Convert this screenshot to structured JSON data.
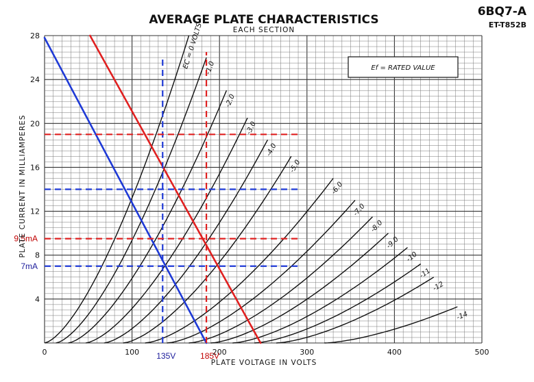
{
  "chart_data": {
    "type": "line",
    "title": "AVERAGE PLATE CHARACTERISTICS",
    "subtitle": "EACH SECTION",
    "tube_type": "6BQ7-A",
    "tube_code": "ET-T852B",
    "xlabel": "PLATE VOLTAGE IN VOLTS",
    "ylabel": "PLATE CURRENT IN MILLIAMPERES",
    "xlim": [
      0,
      500
    ],
    "ylim": [
      0,
      28
    ],
    "x_ticks": [
      "0",
      "100",
      "200",
      "300",
      "400",
      "500"
    ],
    "y_ticks": [
      "4",
      "8",
      "12",
      "16",
      "20",
      "24",
      "28"
    ],
    "grid": true,
    "note": "Ef = RATED VALUE",
    "curves": [
      {
        "label": "EC = 0 VOLTS",
        "v0": 0,
        "v_end": 165,
        "i_end": 28
      },
      {
        "label": "-1.0",
        "v0": 13,
        "v_end": 185,
        "i_end": 26
      },
      {
        "label": "-2.0",
        "v0": 27,
        "v_end": 208,
        "i_end": 23
      },
      {
        "label": "-3.0",
        "v0": 47,
        "v_end": 232,
        "i_end": 20.5
      },
      {
        "label": "-4.0",
        "v0": 68,
        "v_end": 255,
        "i_end": 18.5
      },
      {
        "label": "-5.0",
        "v0": 90,
        "v_end": 282,
        "i_end": 17
      },
      {
        "label": "-6.0",
        "v0": 115,
        "v_end": 330,
        "i_end": 15
      },
      {
        "label": "-7.0",
        "v0": 140,
        "v_end": 355,
        "i_end": 13
      },
      {
        "label": "-8.0",
        "v0": 165,
        "v_end": 375,
        "i_end": 11.5
      },
      {
        "label": "-9.0",
        "v0": 190,
        "v_end": 393,
        "i_end": 10
      },
      {
        "label": "-10",
        "v0": 215,
        "v_end": 415,
        "i_end": 8.7
      },
      {
        "label": "-11",
        "v0": 240,
        "v_end": 430,
        "i_end": 7.2
      },
      {
        "label": "-12",
        "v0": 265,
        "v_end": 445,
        "i_end": 6
      },
      {
        "label": "-14",
        "v0": 320,
        "v_end": 472,
        "i_end": 3.3
      }
    ],
    "load_lines": [
      {
        "color": "#1f3ad6",
        "points": [
          [
            0,
            27.8
          ],
          [
            185,
            0
          ]
        ]
      },
      {
        "color": "#e02020",
        "points": [
          [
            52,
            28
          ],
          [
            247,
            0
          ]
        ]
      }
    ],
    "guides": [
      {
        "color": "#1f3ad6",
        "orientation": "h",
        "value": 14,
        "from": 0,
        "to": 290
      },
      {
        "color": "#1f3ad6",
        "orientation": "h",
        "value": 7,
        "from": 0,
        "to": 290
      },
      {
        "color": "#1f3ad6",
        "orientation": "v",
        "value": 135,
        "from": 0,
        "to": 26
      },
      {
        "color": "#e02020",
        "orientation": "h",
        "value": 19,
        "from": 0,
        "to": 290
      },
      {
        "color": "#e02020",
        "orientation": "h",
        "value": 9.5,
        "from": 0,
        "to": 290
      },
      {
        "color": "#e02020",
        "orientation": "v",
        "value": 185,
        "from": 0,
        "to": 26.5
      }
    ],
    "annotations": [
      {
        "text": "9.5mA",
        "color": "#c00000",
        "value": 9.5
      },
      {
        "text": "7mA",
        "color": "#1a1a9a",
        "value": 7
      },
      {
        "text": "135V",
        "color": "#1a1a9a",
        "value": 135
      },
      {
        "text": "185V",
        "color": "#c00000",
        "value": 185
      }
    ]
  }
}
